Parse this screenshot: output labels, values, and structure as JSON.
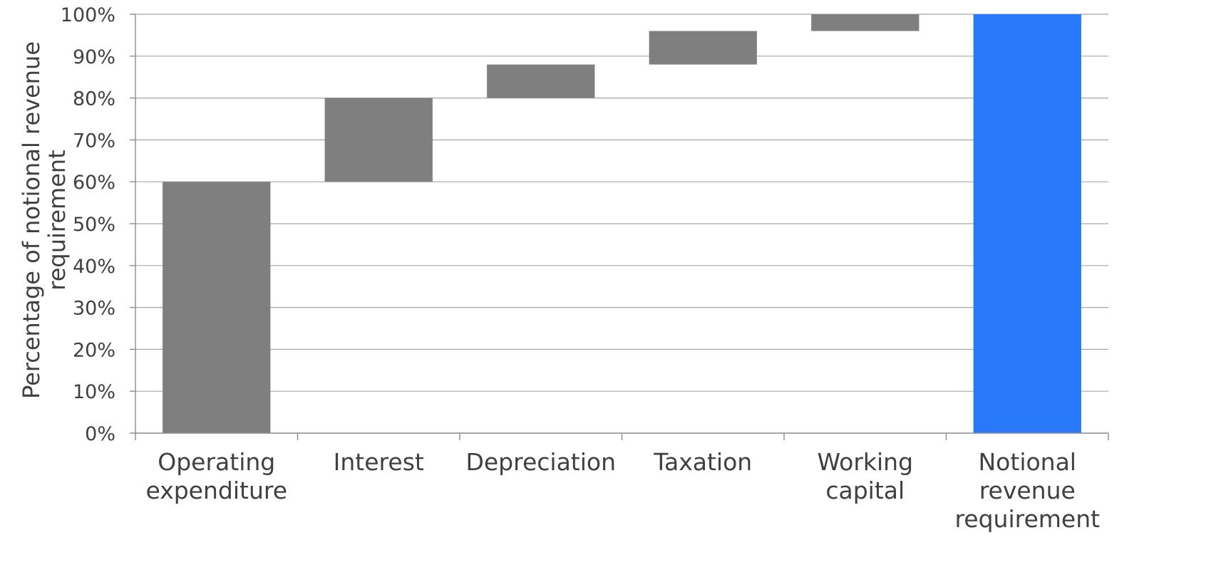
{
  "chart_data": {
    "type": "bar",
    "subtype": "waterfall",
    "title": "",
    "xlabel": "",
    "ylabel_lines": [
      "Percentage of notional revenue",
      "requirement"
    ],
    "ylim": [
      0,
      100
    ],
    "yticks": [
      "0%",
      "10%",
      "20%",
      "30%",
      "40%",
      "50%",
      "60%",
      "70%",
      "80%",
      "90%",
      "100%"
    ],
    "grid": true,
    "legend": "none",
    "categories": [
      [
        "Operating",
        "expenditure"
      ],
      [
        "Interest"
      ],
      [
        "Depreciation"
      ],
      [
        "Taxation"
      ],
      [
        "Working",
        "capital"
      ],
      [
        "Notional",
        "revenue",
        "requirement"
      ]
    ],
    "bars": [
      {
        "base": 0,
        "value": 60,
        "color": "#7f7f7f"
      },
      {
        "base": 60,
        "value": 20,
        "color": "#7f7f7f"
      },
      {
        "base": 80,
        "value": 8,
        "color": "#7f7f7f"
      },
      {
        "base": 88,
        "value": 8,
        "color": "#7f7f7f"
      },
      {
        "base": 96,
        "value": 4,
        "color": "#7f7f7f"
      },
      {
        "base": 0,
        "value": 100,
        "color": "#2878fa"
      }
    ]
  }
}
